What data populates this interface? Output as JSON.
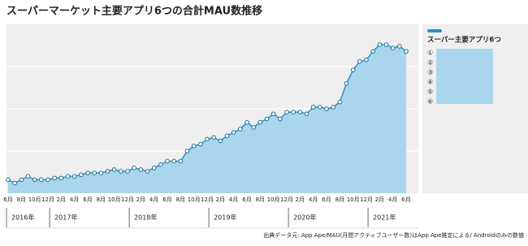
{
  "chart_data": {
    "type": "area",
    "title": "スーパーマーケット主要アプリ6つの合計MAU数推移",
    "categories": [
      "6月",
      null,
      "8月",
      null,
      "10月",
      null,
      "12月",
      null,
      "2月",
      null,
      "4月",
      null,
      "6月",
      null,
      "8月",
      null,
      "10月",
      null,
      "12月",
      null,
      "2月",
      null,
      "4月",
      null,
      "6月",
      null,
      "8月",
      null,
      "10月",
      null,
      "12月",
      null,
      "2月",
      null,
      "4月",
      null,
      "6月",
      null,
      "8月",
      null,
      "10月",
      null,
      "12月",
      null,
      "2月",
      null,
      "4月",
      null,
      "6月",
      null,
      "8月",
      null,
      "10月",
      null,
      "12月",
      null,
      "2月",
      null,
      "4月",
      null,
      "6月"
    ],
    "years": [
      "2016年",
      "2017年",
      "2018年",
      "2019年",
      "2020年",
      "2021年"
    ],
    "series": [
      {
        "name": "スーパー主要アプリ6つ",
        "color": "#2b93c6",
        "fill": "#a9d6ec",
        "values": [
          8,
          6,
          8,
          10,
          8,
          8,
          8,
          9,
          9,
          10,
          10,
          11,
          12,
          12,
          12,
          13,
          14,
          13,
          13,
          15,
          14,
          13,
          15,
          17,
          19,
          19,
          19,
          25,
          28,
          29,
          32,
          33,
          31,
          34,
          36,
          38,
          42,
          39,
          42,
          44,
          47,
          44,
          48,
          48,
          48,
          47,
          51,
          51,
          50,
          51,
          54,
          65,
          73,
          78,
          79,
          84,
          88,
          88,
          86,
          87,
          84
        ]
      }
    ],
    "legend_items": [
      "①",
      "②",
      "③",
      "④",
      "⑤",
      "⑥"
    ],
    "ylim": [
      0,
      100
    ],
    "yticks": [
      25,
      50,
      75
    ],
    "grid": true,
    "source": "出典データ元: App Ape/MAU(月間アクティブユーザー数)はApp Ape推定による/ Androidのみの数値"
  }
}
